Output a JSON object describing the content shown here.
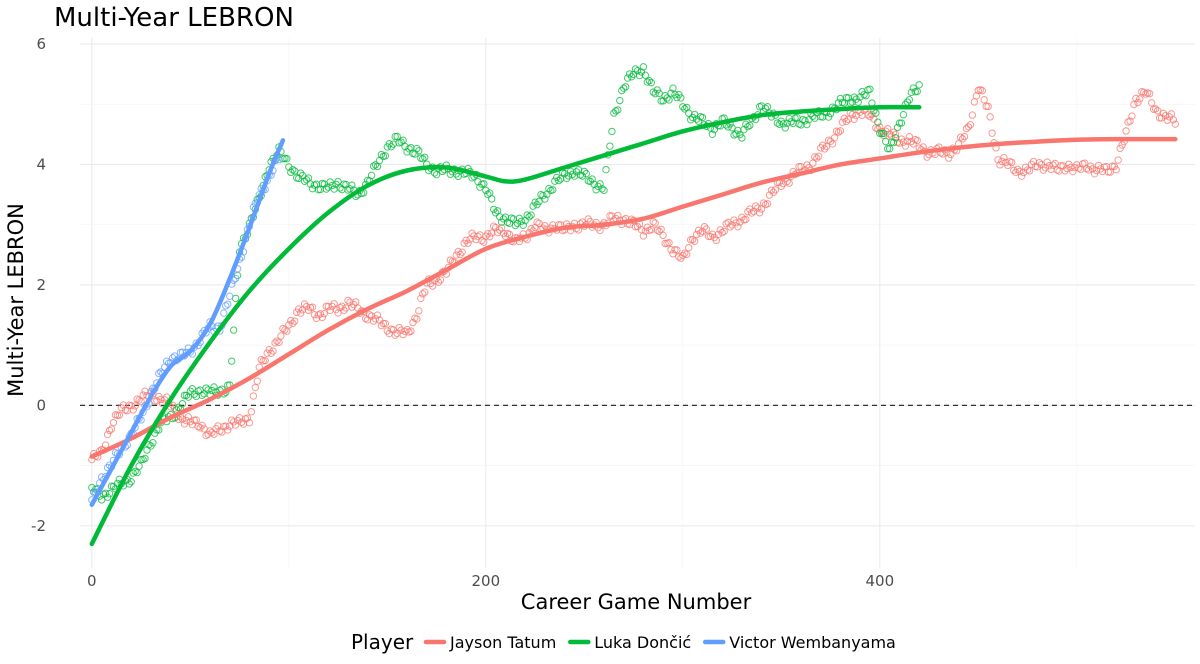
{
  "chart_data": {
    "type": "scatter",
    "title": "Multi-Year LEBRON",
    "xlabel": "Career Game Number",
    "ylabel": "Multi-Year LEBRON",
    "xlim": [
      -6,
      560
    ],
    "ylim": [
      -2.7,
      6.1
    ],
    "x_ticks": [
      0,
      200,
      400
    ],
    "y_ticks": [
      -2,
      0,
      2,
      4,
      6
    ],
    "x_tick_labels": [
      "0",
      "200",
      "400"
    ],
    "y_tick_labels": [
      "-2",
      "0",
      "2",
      "4",
      "6"
    ],
    "reference_line": {
      "y": 0,
      "style": "dashed"
    },
    "grid": true,
    "legend": {
      "title": "Player",
      "position": "bottom"
    },
    "series": [
      {
        "name": "Jayson Tatum",
        "color": "#F8766D",
        "points": [
          [
            0,
            -0.9
          ],
          [
            5,
            -0.8
          ],
          [
            10,
            -0.3
          ],
          [
            15,
            -0.1
          ],
          [
            20,
            0.0
          ],
          [
            25,
            0.1
          ],
          [
            30,
            0.2
          ],
          [
            35,
            0.1
          ],
          [
            40,
            0.0
          ],
          [
            45,
            -0.2
          ],
          [
            50,
            -0.3
          ],
          [
            55,
            -0.3
          ],
          [
            60,
            -0.5
          ],
          [
            65,
            -0.4
          ],
          [
            70,
            -0.3
          ],
          [
            75,
            -0.3
          ],
          [
            80,
            -0.2
          ],
          [
            85,
            0.6
          ],
          [
            90,
            0.9
          ],
          [
            95,
            1.1
          ],
          [
            100,
            1.3
          ],
          [
            105,
            1.6
          ],
          [
            110,
            1.6
          ],
          [
            115,
            1.5
          ],
          [
            120,
            1.6
          ],
          [
            125,
            1.6
          ],
          [
            130,
            1.7
          ],
          [
            135,
            1.6
          ],
          [
            140,
            1.5
          ],
          [
            145,
            1.4
          ],
          [
            150,
            1.3
          ],
          [
            155,
            1.2
          ],
          [
            160,
            1.2
          ],
          [
            165,
            1.5
          ],
          [
            170,
            2.0
          ],
          [
            175,
            2.1
          ],
          [
            180,
            2.2
          ],
          [
            185,
            2.5
          ],
          [
            190,
            2.7
          ],
          [
            195,
            2.8
          ],
          [
            200,
            2.8
          ],
          [
            205,
            2.9
          ],
          [
            210,
            2.9
          ],
          [
            215,
            2.7
          ],
          [
            220,
            2.8
          ],
          [
            225,
            3.0
          ],
          [
            230,
            2.9
          ],
          [
            235,
            3.0
          ],
          [
            240,
            2.9
          ],
          [
            245,
            3.0
          ],
          [
            250,
            3.0
          ],
          [
            255,
            3.0
          ],
          [
            260,
            3.0
          ],
          [
            265,
            3.1
          ],
          [
            270,
            3.1
          ],
          [
            275,
            3.0
          ],
          [
            280,
            2.9
          ],
          [
            285,
            3.0
          ],
          [
            290,
            2.8
          ],
          [
            295,
            2.6
          ],
          [
            300,
            2.4
          ],
          [
            305,
            2.8
          ],
          [
            310,
            2.9
          ],
          [
            315,
            2.8
          ],
          [
            320,
            2.9
          ],
          [
            325,
            3.0
          ],
          [
            330,
            3.1
          ],
          [
            335,
            3.2
          ],
          [
            340,
            3.3
          ],
          [
            345,
            3.5
          ],
          [
            350,
            3.7
          ],
          [
            355,
            3.8
          ],
          [
            360,
            3.9
          ],
          [
            365,
            4.0
          ],
          [
            370,
            4.2
          ],
          [
            375,
            4.4
          ],
          [
            380,
            4.6
          ],
          [
            385,
            4.8
          ],
          [
            390,
            4.9
          ],
          [
            395,
            4.8
          ],
          [
            400,
            4.6
          ],
          [
            405,
            4.5
          ],
          [
            410,
            4.4
          ],
          [
            415,
            4.4
          ],
          [
            420,
            4.3
          ],
          [
            425,
            4.2
          ],
          [
            430,
            4.2
          ],
          [
            435,
            4.2
          ],
          [
            440,
            4.3
          ],
          [
            445,
            4.6
          ],
          [
            450,
            5.3
          ],
          [
            455,
            4.9
          ],
          [
            460,
            4.1
          ],
          [
            465,
            4.0
          ],
          [
            470,
            3.9
          ],
          [
            475,
            3.9
          ],
          [
            480,
            4.0
          ],
          [
            485,
            4.0
          ],
          [
            490,
            3.9
          ],
          [
            495,
            4.0
          ],
          [
            500,
            3.9
          ],
          [
            505,
            4.0
          ],
          [
            510,
            3.9
          ],
          [
            515,
            3.9
          ],
          [
            520,
            4.0
          ],
          [
            525,
            4.5
          ],
          [
            530,
            5.1
          ],
          [
            535,
            5.2
          ],
          [
            540,
            4.9
          ],
          [
            545,
            4.8
          ],
          [
            550,
            4.7
          ]
        ],
        "trend": [
          [
            0,
            -0.85
          ],
          [
            20,
            -0.55
          ],
          [
            40,
            -0.2
          ],
          [
            60,
            0.1
          ],
          [
            80,
            0.45
          ],
          [
            100,
            0.85
          ],
          [
            120,
            1.25
          ],
          [
            140,
            1.6
          ],
          [
            160,
            1.9
          ],
          [
            180,
            2.25
          ],
          [
            200,
            2.6
          ],
          [
            220,
            2.8
          ],
          [
            240,
            2.95
          ],
          [
            260,
            3.0
          ],
          [
            280,
            3.1
          ],
          [
            300,
            3.3
          ],
          [
            320,
            3.5
          ],
          [
            340,
            3.7
          ],
          [
            360,
            3.85
          ],
          [
            380,
            4.0
          ],
          [
            400,
            4.1
          ],
          [
            420,
            4.2
          ],
          [
            440,
            4.28
          ],
          [
            460,
            4.34
          ],
          [
            480,
            4.38
          ],
          [
            500,
            4.41
          ],
          [
            520,
            4.42
          ],
          [
            540,
            4.42
          ],
          [
            550,
            4.42
          ]
        ]
      },
      {
        "name": "Luka Dončić",
        "color": "#00BA38",
        "points": [
          [
            0,
            -1.4
          ],
          [
            5,
            -1.5
          ],
          [
            10,
            -1.4
          ],
          [
            15,
            -1.3
          ],
          [
            20,
            -1.2
          ],
          [
            25,
            -1.0
          ],
          [
            30,
            -0.6
          ],
          [
            35,
            -0.3
          ],
          [
            40,
            -0.2
          ],
          [
            45,
            0.0
          ],
          [
            50,
            0.2
          ],
          [
            55,
            0.25
          ],
          [
            60,
            0.2
          ],
          [
            65,
            0.25
          ],
          [
            70,
            0.3
          ],
          [
            75,
            2.6
          ],
          [
            80,
            3.0
          ],
          [
            85,
            3.4
          ],
          [
            90,
            4.0
          ],
          [
            95,
            4.2
          ],
          [
            100,
            4.0
          ],
          [
            105,
            3.8
          ],
          [
            110,
            3.7
          ],
          [
            115,
            3.65
          ],
          [
            120,
            3.6
          ],
          [
            125,
            3.7
          ],
          [
            130,
            3.6
          ],
          [
            135,
            3.5
          ],
          [
            140,
            3.7
          ],
          [
            145,
            4.0
          ],
          [
            150,
            4.3
          ],
          [
            155,
            4.4
          ],
          [
            160,
            4.3
          ],
          [
            165,
            4.2
          ],
          [
            170,
            4.0
          ],
          [
            175,
            3.9
          ],
          [
            180,
            3.9
          ],
          [
            185,
            3.9
          ],
          [
            190,
            3.85
          ],
          [
            195,
            3.8
          ],
          [
            200,
            3.6
          ],
          [
            205,
            3.2
          ],
          [
            210,
            3.1
          ],
          [
            215,
            3.0
          ],
          [
            220,
            3.1
          ],
          [
            225,
            3.3
          ],
          [
            230,
            3.5
          ],
          [
            235,
            3.7
          ],
          [
            240,
            3.8
          ],
          [
            245,
            3.9
          ],
          [
            250,
            3.8
          ],
          [
            255,
            3.7
          ],
          [
            260,
            3.6
          ],
          [
            265,
            4.8
          ],
          [
            270,
            5.3
          ],
          [
            275,
            5.5
          ],
          [
            280,
            5.6
          ],
          [
            285,
            5.2
          ],
          [
            290,
            5.1
          ],
          [
            295,
            5.2
          ],
          [
            300,
            5.0
          ],
          [
            305,
            4.8
          ],
          [
            310,
            4.7
          ],
          [
            315,
            4.6
          ],
          [
            320,
            4.7
          ],
          [
            325,
            4.6
          ],
          [
            330,
            4.5
          ],
          [
            335,
            4.7
          ],
          [
            340,
            5.0
          ],
          [
            345,
            4.8
          ],
          [
            350,
            4.7
          ],
          [
            355,
            4.7
          ],
          [
            360,
            4.7
          ],
          [
            365,
            4.8
          ],
          [
            370,
            4.8
          ],
          [
            375,
            4.9
          ],
          [
            380,
            5.0
          ],
          [
            385,
            5.1
          ],
          [
            390,
            5.1
          ],
          [
            395,
            5.2
          ],
          [
            400,
            4.6
          ],
          [
            405,
            4.2
          ],
          [
            410,
            4.7
          ],
          [
            415,
            5.1
          ],
          [
            420,
            5.3
          ]
        ],
        "trend": [
          [
            0,
            -2.3
          ],
          [
            20,
            -1.0
          ],
          [
            40,
            0.1
          ],
          [
            60,
            1.05
          ],
          [
            80,
            1.9
          ],
          [
            100,
            2.6
          ],
          [
            120,
            3.2
          ],
          [
            140,
            3.65
          ],
          [
            160,
            3.9
          ],
          [
            180,
            3.95
          ],
          [
            200,
            3.8
          ],
          [
            210,
            3.72
          ],
          [
            220,
            3.75
          ],
          [
            240,
            3.95
          ],
          [
            260,
            4.15
          ],
          [
            280,
            4.35
          ],
          [
            300,
            4.55
          ],
          [
            320,
            4.7
          ],
          [
            340,
            4.82
          ],
          [
            360,
            4.88
          ],
          [
            380,
            4.92
          ],
          [
            400,
            4.95
          ],
          [
            420,
            4.95
          ]
        ]
      },
      {
        "name": "Victor Wembanyama",
        "color": "#619CFF",
        "points": [
          [
            0,
            -1.6
          ],
          [
            5,
            -1.2
          ],
          [
            10,
            -1.0
          ],
          [
            15,
            -0.7
          ],
          [
            20,
            -0.5
          ],
          [
            25,
            -0.2
          ],
          [
            30,
            0.2
          ],
          [
            35,
            0.5
          ],
          [
            40,
            0.8
          ],
          [
            45,
            0.8
          ],
          [
            50,
            0.9
          ],
          [
            55,
            1.1
          ],
          [
            60,
            1.3
          ],
          [
            65,
            1.3
          ],
          [
            70,
            1.8
          ],
          [
            75,
            2.4
          ],
          [
            80,
            3.0
          ],
          [
            85,
            3.5
          ],
          [
            90,
            3.8
          ],
          [
            95,
            4.1
          ]
        ],
        "trend": [
          [
            0,
            -1.65
          ],
          [
            10,
            -1.05
          ],
          [
            20,
            -0.45
          ],
          [
            30,
            0.15
          ],
          [
            40,
            0.65
          ],
          [
            50,
            0.9
          ],
          [
            60,
            1.35
          ],
          [
            70,
            2.1
          ],
          [
            80,
            2.95
          ],
          [
            90,
            3.85
          ],
          [
            97,
            4.4
          ]
        ]
      }
    ]
  }
}
